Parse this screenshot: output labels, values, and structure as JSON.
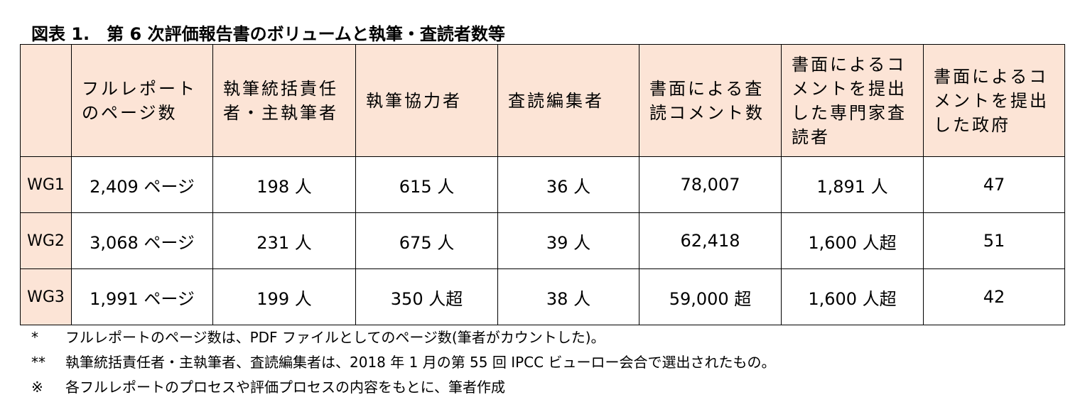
{
  "title": "図表 1.　第 6 次評価報告書のボリュームと執筆・査読者数等",
  "table": {
    "header": [
      "フルレポートのページ数",
      "執筆統括責任者・主執筆者",
      "執筆協力者",
      "査読編集者",
      "書面による査読コメント数",
      "書面によるコメントを提出した専門家査読者",
      "書面によるコメントを提出した政府"
    ],
    "rows": [
      [
        "WG1",
        "2,409 ページ",
        "198 人",
        "615 人",
        "36 人",
        "78,007",
        "1,891 人",
        "47"
      ],
      [
        "WG2",
        "3,068 ページ",
        "231 人",
        "675 人",
        "39 人",
        "62,418",
        "1,600 人超",
        "51"
      ],
      [
        "WG3",
        "1,991 ページ",
        "199 人",
        "350 人超",
        "38 人",
        "59,000 超",
        "1,600 人超",
        "42"
      ]
    ]
  },
  "notes": [
    {
      "mark": "*",
      "text": "フルレポートのページ数は、PDF ファイルとしてのページ数(筆者がカウントした)。"
    },
    {
      "mark": "**",
      "text": "執筆統括責任者・主執筆者、査読編集者は、2018 年 1 月の第 55 回 IPCC ビューロー会合で選出されたもの。"
    },
    {
      "mark": "※",
      "text": "各フルレポートのプロセスや評価プロセスの内容をもとに、筆者作成"
    }
  ]
}
